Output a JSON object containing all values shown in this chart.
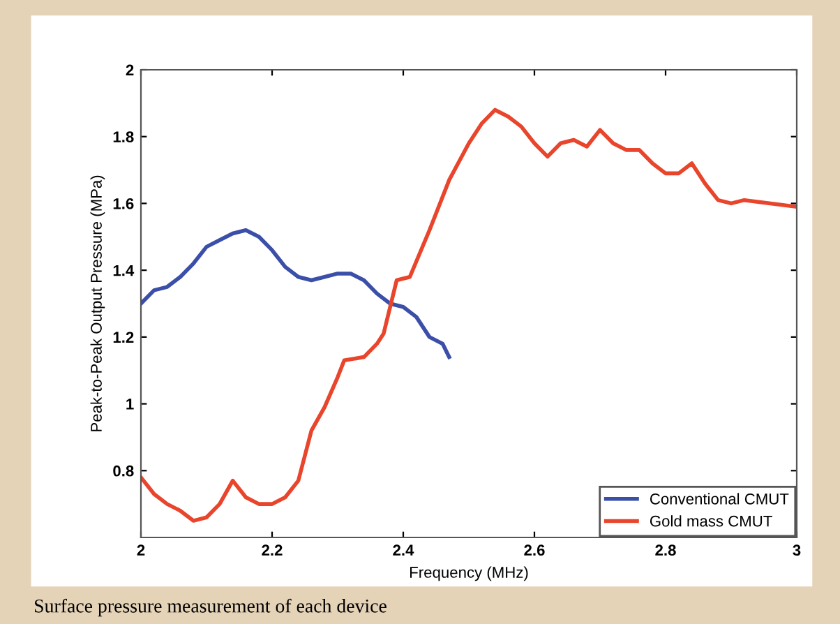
{
  "chart_data": {
    "type": "line",
    "xlabel": "Frequency (MHz)",
    "ylabel": "Peak-to-Peak Output Pressure (MPa)",
    "xlim": [
      2,
      3
    ],
    "xticks": [
      2,
      2.2,
      2.4,
      2.6,
      2.8,
      3
    ],
    "ylim": [
      0.6,
      2
    ],
    "yticks": [
      0.8,
      1,
      1.2,
      1.4,
      1.6,
      1.8,
      2
    ],
    "grid": false,
    "legend": "bottom right",
    "marker": "none",
    "line_style": "solid",
    "annotations": [
      "Surface pressure measurement of each device"
    ],
    "series": [
      {
        "name": "Conventional CMUT",
        "color": "#3b4fa8",
        "x": [
          2.0,
          2.02,
          2.04,
          2.06,
          2.08,
          2.1,
          2.12,
          2.14,
          2.16,
          2.18,
          2.2,
          2.22,
          2.24,
          2.26,
          2.28,
          2.3,
          2.32,
          2.34,
          2.36,
          2.38,
          2.4,
          2.42,
          2.44,
          2.46,
          2.47
        ],
        "values": [
          1.3,
          1.34,
          1.35,
          1.38,
          1.42,
          1.47,
          1.49,
          1.51,
          1.52,
          1.5,
          1.46,
          1.41,
          1.38,
          1.37,
          1.38,
          1.39,
          1.39,
          1.37,
          1.33,
          1.3,
          1.29,
          1.26,
          1.2,
          1.18,
          1.14
        ]
      },
      {
        "name": "Gold mass CMUT",
        "color": "#e8452c",
        "x": [
          2.0,
          2.02,
          2.04,
          2.06,
          2.08,
          2.1,
          2.12,
          2.14,
          2.16,
          2.18,
          2.2,
          2.22,
          2.24,
          2.26,
          2.28,
          2.3,
          2.31,
          2.34,
          2.36,
          2.37,
          2.39,
          2.41,
          2.44,
          2.47,
          2.5,
          2.52,
          2.54,
          2.56,
          2.58,
          2.6,
          2.62,
          2.64,
          2.66,
          2.68,
          2.7,
          2.72,
          2.74,
          2.76,
          2.78,
          2.8,
          2.82,
          2.84,
          2.86,
          2.88,
          2.9,
          2.92,
          2.96,
          3.0
        ],
        "values": [
          0.78,
          0.73,
          0.7,
          0.68,
          0.65,
          0.66,
          0.7,
          0.77,
          0.72,
          0.7,
          0.7,
          0.72,
          0.77,
          0.92,
          0.99,
          1.08,
          1.13,
          1.14,
          1.18,
          1.21,
          1.37,
          1.38,
          1.52,
          1.67,
          1.78,
          1.84,
          1.88,
          1.86,
          1.83,
          1.78,
          1.74,
          1.78,
          1.79,
          1.77,
          1.82,
          1.78,
          1.76,
          1.76,
          1.72,
          1.69,
          1.69,
          1.72,
          1.66,
          1.61,
          1.6,
          1.61,
          1.6,
          1.59
        ]
      }
    ]
  }
}
